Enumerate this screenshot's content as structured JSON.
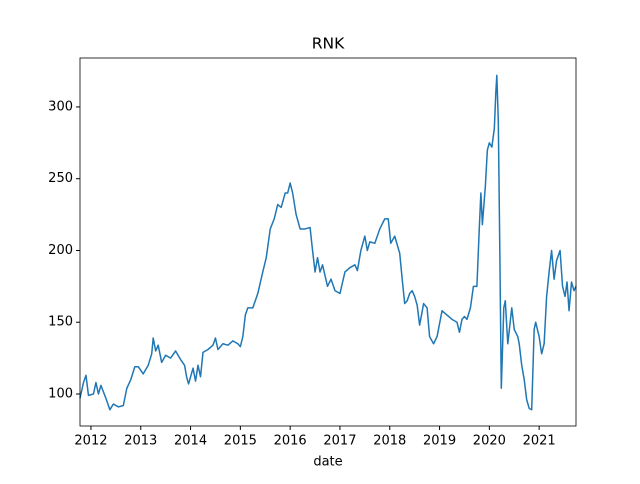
{
  "chart_data": {
    "type": "line",
    "title": "RNK",
    "xlabel": "date",
    "x": [
      2011.78,
      2011.85,
      2011.9,
      2011.95,
      2012.05,
      2012.1,
      2012.15,
      2012.2,
      2012.3,
      2012.38,
      2012.45,
      2012.55,
      2012.65,
      2012.72,
      2012.8,
      2012.88,
      2012.95,
      2013.05,
      2013.15,
      2013.22,
      2013.25,
      2013.3,
      2013.35,
      2013.42,
      2013.5,
      2013.6,
      2013.7,
      2013.8,
      2013.88,
      2013.92,
      2013.96,
      2014.05,
      2014.1,
      2014.15,
      2014.2,
      2014.25,
      2014.35,
      2014.45,
      2014.5,
      2014.55,
      2014.65,
      2014.75,
      2014.85,
      2014.95,
      2015.0,
      2015.05,
      2015.1,
      2015.15,
      2015.25,
      2015.35,
      2015.45,
      2015.52,
      2015.6,
      2015.68,
      2015.75,
      2015.82,
      2015.9,
      2015.95,
      2016.0,
      2016.05,
      2016.12,
      2016.2,
      2016.3,
      2016.4,
      2016.45,
      2016.5,
      2016.55,
      2016.6,
      2016.65,
      2016.75,
      2016.82,
      2016.9,
      2017.0,
      2017.1,
      2017.2,
      2017.3,
      2017.35,
      2017.42,
      2017.5,
      2017.55,
      2017.6,
      2017.7,
      2017.8,
      2017.9,
      2017.97,
      2018.02,
      2018.1,
      2018.2,
      2018.25,
      2018.3,
      2018.35,
      2018.4,
      2018.45,
      2018.5,
      2018.55,
      2018.6,
      2018.68,
      2018.75,
      2018.8,
      2018.88,
      2018.95,
      2019.05,
      2019.15,
      2019.25,
      2019.35,
      2019.4,
      2019.45,
      2019.5,
      2019.55,
      2019.62,
      2019.68,
      2019.75,
      2019.8,
      2019.83,
      2019.86,
      2019.92,
      2019.96,
      2020.0,
      2020.05,
      2020.1,
      2020.13,
      2020.15,
      2020.18,
      2020.21,
      2020.24,
      2020.29,
      2020.32,
      2020.37,
      2020.45,
      2020.5,
      2020.57,
      2020.6,
      2020.65,
      2020.7,
      2020.75,
      2020.8,
      2020.85,
      2020.9,
      2020.93,
      2021.0,
      2021.05,
      2021.1,
      2021.15,
      2021.2,
      2021.25,
      2021.3,
      2021.35,
      2021.42,
      2021.47,
      2021.52,
      2021.56,
      2021.6,
      2021.65,
      2021.7,
      2021.74
    ],
    "series": [
      {
        "name": "RNK",
        "color": "#1f77b4",
        "values": [
          97,
          108,
          113,
          99,
          100,
          108,
          100,
          106,
          97,
          89,
          93,
          91,
          92,
          104,
          110,
          119,
          119,
          114,
          120,
          128,
          139,
          130,
          134,
          122,
          127,
          125,
          130,
          124,
          120,
          112,
          107,
          118,
          109,
          120,
          112,
          129,
          131,
          134,
          139,
          131,
          135,
          134,
          137,
          135,
          133,
          140,
          155,
          160,
          160,
          170,
          185,
          195,
          215,
          222,
          232,
          230,
          240,
          240,
          247,
          240,
          225,
          215,
          215,
          216,
          200,
          185,
          195,
          185,
          190,
          175,
          180,
          172,
          170,
          185,
          188,
          190,
          186,
          200,
          210,
          200,
          206,
          205,
          215,
          222,
          222,
          205,
          210,
          198,
          180,
          163,
          165,
          170,
          172,
          168,
          162,
          148,
          163,
          160,
          140,
          135,
          140,
          158,
          155,
          152,
          150,
          143,
          152,
          154,
          152,
          160,
          175,
          175,
          217,
          240,
          218,
          245,
          270,
          275,
          272,
          285,
          310,
          322,
          290,
          200,
          104,
          160,
          165,
          135,
          160,
          145,
          140,
          135,
          120,
          110,
          96,
          90,
          89,
          145,
          150,
          140,
          128,
          135,
          168,
          185,
          200,
          180,
          193,
          200,
          175,
          168,
          178,
          158,
          178,
          172,
          175
        ]
      }
    ],
    "xlim": [
      2011.78,
      2021.74
    ],
    "xticks": [
      2012,
      2013,
      2014,
      2015,
      2016,
      2017,
      2018,
      2019,
      2020,
      2021
    ],
    "ylim": [
      77.7,
      334.1
    ],
    "yticks": [
      100,
      150,
      200,
      250,
      300
    ]
  }
}
